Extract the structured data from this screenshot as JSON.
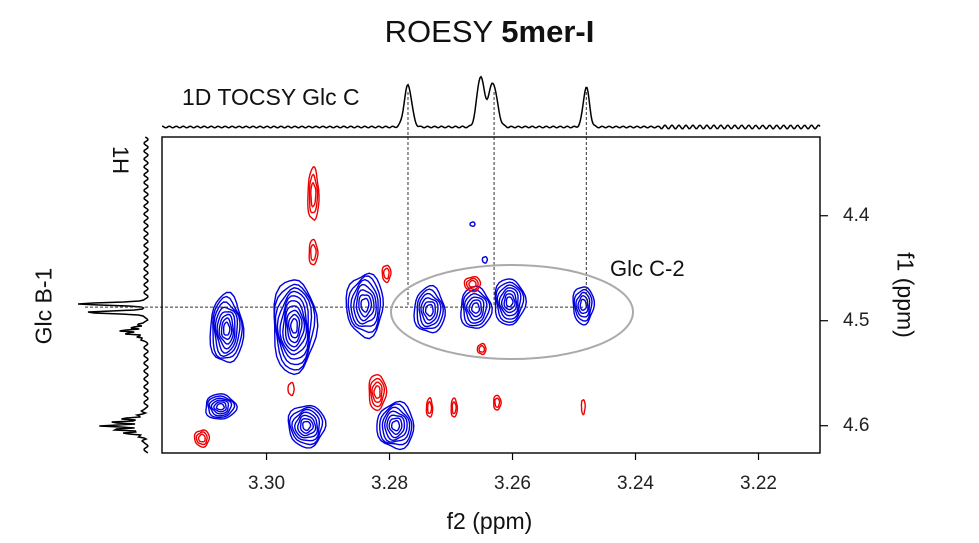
{
  "chart_data": {
    "type": "contour",
    "title": "ROESY",
    "title_bold": "5mer-I",
    "xlabel": "f2 (ppm)",
    "ylabel": "f1 (ppm)",
    "x_range": [
      3.317,
      3.21
    ],
    "y_range": [
      4.325,
      4.626
    ],
    "x_ticks": [
      3.3,
      3.28,
      3.26,
      3.24,
      3.22
    ],
    "x_tick_labels": [
      "3.30",
      "3.28",
      "3.26",
      "3.24",
      "3.22"
    ],
    "y_ticks": [
      4.4,
      4.5,
      4.6
    ],
    "y_tick_labels": [
      "4.4",
      "4.5",
      "4.6"
    ],
    "top_trace_label": "1D TOCSY Glc C",
    "top_trace_peaks_ppm": [
      3.277,
      3.264,
      3.263,
      3.248
    ],
    "left_trace_label": "Glc B-1",
    "left_axis_nucleus": "1H",
    "annotation": {
      "text": "Glc C-2",
      "center_ppm": [
        3.264,
        4.487
      ]
    },
    "crosshair": {
      "f1": 4.487,
      "f2": [
        3.277,
        3.263,
        3.248
      ]
    },
    "series": [
      {
        "name": "positive",
        "color": "#0000dd",
        "peaks": [
          {
            "f2": 3.3065,
            "f1": 4.508,
            "rx": 0.0027,
            "ry": 0.033,
            "levels": 8
          },
          {
            "f2": 3.3075,
            "f1": 4.582,
            "rx": 0.0025,
            "ry": 0.012,
            "levels": 6
          },
          {
            "f2": 3.2955,
            "f1": 4.505,
            "rx": 0.0035,
            "ry": 0.045,
            "levels": 10
          },
          {
            "f2": 3.2935,
            "f1": 4.6,
            "rx": 0.003,
            "ry": 0.02,
            "levels": 7
          },
          {
            "f2": 3.284,
            "f1": 4.485,
            "rx": 0.003,
            "ry": 0.03,
            "levels": 7
          },
          {
            "f2": 3.279,
            "f1": 4.6,
            "rx": 0.003,
            "ry": 0.022,
            "levels": 7
          },
          {
            "f2": 3.2735,
            "f1": 4.49,
            "rx": 0.0025,
            "ry": 0.022,
            "levels": 6
          },
          {
            "f2": 3.266,
            "f1": 4.488,
            "rx": 0.0025,
            "ry": 0.02,
            "levels": 6
          },
          {
            "f2": 3.2605,
            "f1": 4.482,
            "rx": 0.0025,
            "ry": 0.022,
            "levels": 7
          },
          {
            "f2": 3.2485,
            "f1": 4.485,
            "rx": 0.0017,
            "ry": 0.018,
            "levels": 5
          },
          {
            "f2": 3.2645,
            "f1": 4.442,
            "rx": 0.0004,
            "ry": 0.003,
            "levels": 1
          },
          {
            "f2": 3.2665,
            "f1": 4.408,
            "rx": 0.0004,
            "ry": 0.002,
            "levels": 1
          }
        ]
      },
      {
        "name": "negative",
        "color": "#ee0000",
        "peaks": [
          {
            "f2": 3.2924,
            "f1": 4.38,
            "rx": 0.0009,
            "ry": 0.025,
            "levels": 3
          },
          {
            "f2": 3.2924,
            "f1": 4.435,
            "rx": 0.0007,
            "ry": 0.012,
            "levels": 2
          },
          {
            "f2": 3.282,
            "f1": 4.568,
            "rx": 0.0014,
            "ry": 0.017,
            "levels": 4
          },
          {
            "f2": 3.2805,
            "f1": 4.455,
            "rx": 0.0007,
            "ry": 0.008,
            "levels": 2
          },
          {
            "f2": 3.2665,
            "f1": 4.465,
            "rx": 0.0013,
            "ry": 0.007,
            "levels": 3
          },
          {
            "f2": 3.265,
            "f1": 4.527,
            "rx": 0.0007,
            "ry": 0.005,
            "levels": 2
          },
          {
            "f2": 3.2735,
            "f1": 4.583,
            "rx": 0.0005,
            "ry": 0.009,
            "levels": 2
          },
          {
            "f2": 3.2695,
            "f1": 4.583,
            "rx": 0.0005,
            "ry": 0.009,
            "levels": 2
          },
          {
            "f2": 3.2625,
            "f1": 4.578,
            "rx": 0.0006,
            "ry": 0.007,
            "levels": 2
          },
          {
            "f2": 3.2485,
            "f1": 4.582,
            "rx": 0.0003,
            "ry": 0.007,
            "levels": 1
          },
          {
            "f2": 3.3105,
            "f1": 4.612,
            "rx": 0.0012,
            "ry": 0.008,
            "levels": 3
          },
          {
            "f2": 3.296,
            "f1": 4.565,
            "rx": 0.0005,
            "ry": 0.006,
            "levels": 1
          }
        ]
      }
    ]
  }
}
